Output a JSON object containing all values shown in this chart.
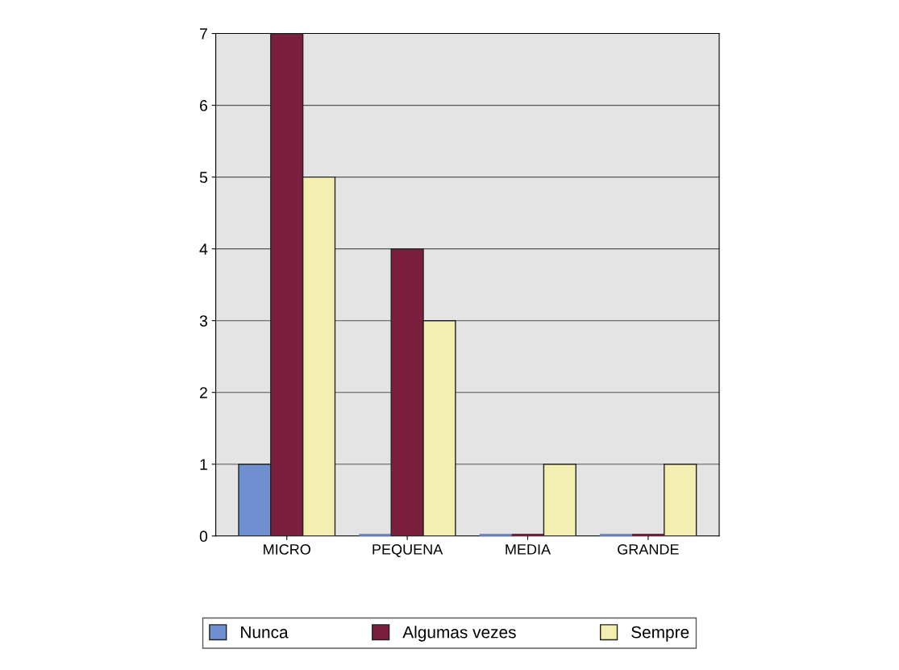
{
  "chart_data": {
    "type": "bar",
    "categories": [
      "MICRO",
      "PEQUENA",
      "MEDIA",
      "GRANDE"
    ],
    "series": [
      {
        "name": "Nunca",
        "color": "#6f8fd0",
        "values": [
          1,
          0,
          0,
          0
        ]
      },
      {
        "name": "Algumas vezes",
        "color": "#7a1f3d",
        "values": [
          7,
          4,
          0,
          0
        ]
      },
      {
        "name": "Sempre",
        "color": "#f3efb0",
        "values": [
          5,
          3,
          1,
          1
        ]
      }
    ],
    "ylim": [
      0,
      7
    ],
    "yticks": [
      0,
      1,
      2,
      3,
      4,
      5,
      6,
      7
    ],
    "grid": "y",
    "legend": "bottom"
  }
}
